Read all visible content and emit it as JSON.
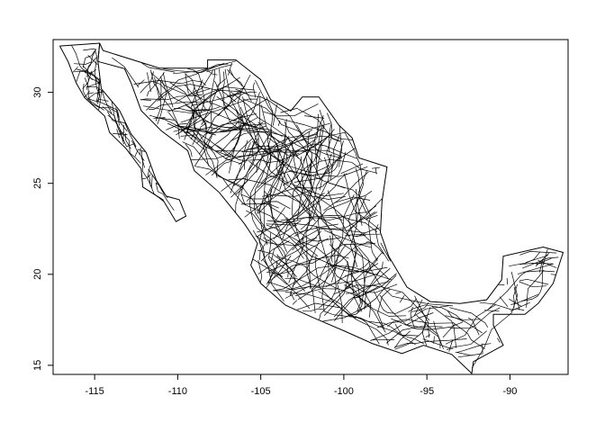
{
  "map": {
    "type": "scatter",
    "description_free": true,
    "xlim": [
      -117.5,
      -86.5
    ],
    "ylim": [
      14.5,
      32.9
    ],
    "x_ticks": [
      -115,
      -110,
      -105,
      -100,
      -95,
      -90
    ],
    "x_tick_labels": [
      "-115",
      "-110",
      "-105",
      "-100",
      "-95",
      "-90"
    ],
    "y_ticks": [
      15,
      20,
      25,
      30
    ],
    "y_tick_labels": [
      "15",
      "20",
      "25",
      "30"
    ],
    "line_color": "#000000",
    "outline": [
      [
        -117.1,
        32.55
      ],
      [
        -114.7,
        32.7
      ],
      [
        -114.5,
        32.3
      ],
      [
        -111.1,
        31.33
      ],
      [
        -108.2,
        31.33
      ],
      [
        -108.2,
        31.78
      ],
      [
        -106.5,
        31.78
      ],
      [
        -105.0,
        30.7
      ],
      [
        -104.4,
        29.6
      ],
      [
        -103.2,
        28.98
      ],
      [
        -102.5,
        29.75
      ],
      [
        -101.5,
        29.75
      ],
      [
        -100.3,
        28.2
      ],
      [
        -99.5,
        27.5
      ],
      [
        -99.1,
        26.4
      ],
      [
        -97.4,
        25.9
      ],
      [
        -97.7,
        24.0
      ],
      [
        -97.8,
        22.3
      ],
      [
        -97.3,
        21.0
      ],
      [
        -96.2,
        19.3
      ],
      [
        -94.8,
        18.5
      ],
      [
        -93.0,
        18.4
      ],
      [
        -91.4,
        18.6
      ],
      [
        -90.5,
        19.7
      ],
      [
        -90.4,
        21.0
      ],
      [
        -88.0,
        21.5
      ],
      [
        -86.8,
        21.2
      ],
      [
        -87.4,
        19.5
      ],
      [
        -88.3,
        18.4
      ],
      [
        -89.1,
        17.8
      ],
      [
        -91.0,
        17.8
      ],
      [
        -91.0,
        17.2
      ],
      [
        -90.4,
        16.1
      ],
      [
        -92.2,
        15.2
      ],
      [
        -92.3,
        14.55
      ],
      [
        -93.5,
        15.6
      ],
      [
        -95.2,
        16.1
      ],
      [
        -96.5,
        15.65
      ],
      [
        -98.3,
        16.2
      ],
      [
        -100.0,
        16.9
      ],
      [
        -101.8,
        17.6
      ],
      [
        -103.5,
        18.3
      ],
      [
        -105.0,
        19.5
      ],
      [
        -105.6,
        20.5
      ],
      [
        -105.2,
        21.7
      ],
      [
        -106.0,
        22.8
      ],
      [
        -107.5,
        24.5
      ],
      [
        -109.0,
        25.7
      ],
      [
        -109.4,
        26.8
      ],
      [
        -111.0,
        27.9
      ],
      [
        -112.2,
        29.0
      ],
      [
        -112.8,
        30.5
      ],
      [
        -113.2,
        31.3
      ],
      [
        -114.8,
        31.7
      ],
      [
        -114.7,
        32.7
      ]
    ],
    "baja": [
      [
        -117.1,
        32.55
      ],
      [
        -116.6,
        31.7
      ],
      [
        -116.1,
        30.5
      ],
      [
        -115.6,
        29.7
      ],
      [
        -114.4,
        28.7
      ],
      [
        -114.1,
        27.8
      ],
      [
        -113.1,
        26.9
      ],
      [
        -112.2,
        25.8
      ],
      [
        -112.1,
        24.8
      ],
      [
        -110.9,
        24.1
      ],
      [
        -110.1,
        22.9
      ],
      [
        -109.5,
        23.2
      ],
      [
        -109.9,
        24.1
      ],
      [
        -110.7,
        24.3
      ],
      [
        -111.3,
        25.2
      ],
      [
        -111.9,
        26.7
      ],
      [
        -112.8,
        27.7
      ],
      [
        -113.5,
        29.0
      ],
      [
        -114.6,
        30.2
      ],
      [
        -114.8,
        31.7
      ],
      [
        -114.7,
        32.7
      ]
    ]
  }
}
